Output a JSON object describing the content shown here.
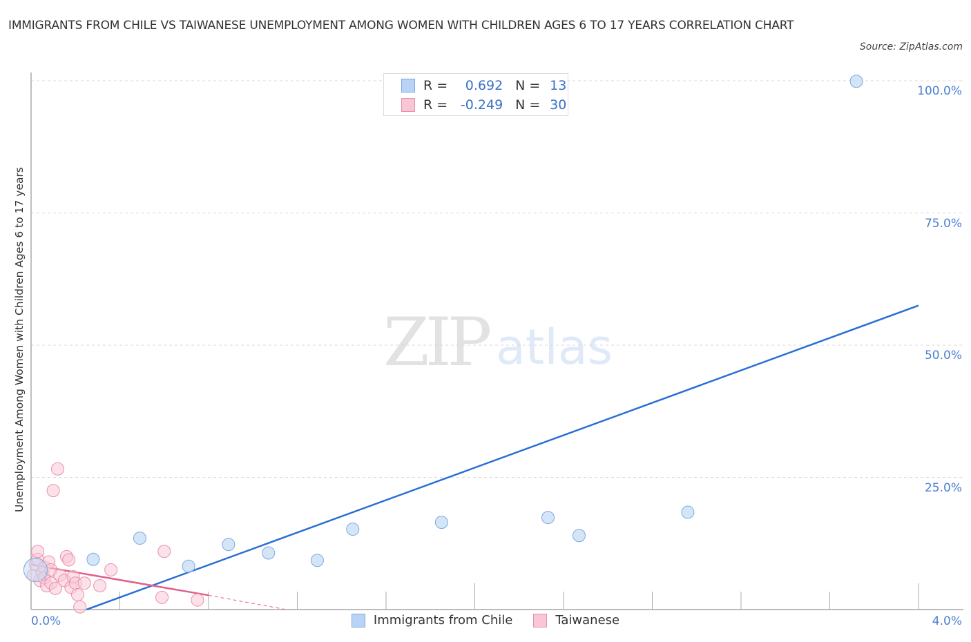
{
  "header": {
    "title": "IMMIGRANTS FROM CHILE VS TAIWANESE UNEMPLOYMENT AMONG WOMEN WITH CHILDREN AGES 6 TO 17 YEARS CORRELATION CHART",
    "source": "Source: ZipAtlas.com"
  },
  "watermark": {
    "zip": "ZIP",
    "atlas": "atlas"
  },
  "axes": {
    "ylabel": "Unemployment Among Women with Children Ages 6 to 17 years",
    "yticks": [
      "100.0%",
      "75.0%",
      "50.0%",
      "25.0%"
    ],
    "xticks": [
      "0.0%",
      "4.0%"
    ]
  },
  "legend": {
    "rows": [
      {
        "r_label": "R =",
        "r_value": "0.692",
        "n_label": "N =",
        "n_value": "13",
        "color": "#b8d3f5",
        "border": "#7aa7e0"
      },
      {
        "r_label": "R =",
        "r_value": "-0.249",
        "n_label": "N =",
        "n_value": "30",
        "color": "#f9c6d6",
        "border": "#e890aa"
      }
    ],
    "bottom": [
      "Immigrants from Chile",
      "Taiwanese"
    ]
  },
  "colors": {
    "blue_fill": "#c7dcf6",
    "blue_stroke": "#7aa7e0",
    "blue_line": "#2a6fd4",
    "pink_fill": "#f9c8d7",
    "pink_stroke": "#e890aa",
    "pink_line": "#e0608a",
    "tick_text": "#4a7fd0"
  },
  "chart_data": {
    "type": "scatter",
    "title": "IMMIGRANTS FROM CHILE VS TAIWANESE UNEMPLOYMENT AMONG WOMEN WITH CHILDREN AGES 6 TO 17 YEARS CORRELATION CHART",
    "xlabel": "",
    "ylabel": "Unemployment Among Women with Children Ages 6 to 17 years",
    "xlim": [
      0,
      4.0
    ],
    "ylim": [
      0,
      100
    ],
    "grid": true,
    "legend_position": "top-center / bottom",
    "series": [
      {
        "name": "Immigrants from Chile",
        "R": 0.692,
        "N": 13,
        "points": [
          [
            0.02,
            7.5
          ],
          [
            0.28,
            9.5
          ],
          [
            0.49,
            13.5
          ],
          [
            0.71,
            8.2
          ],
          [
            0.89,
            12.3
          ],
          [
            1.07,
            10.7
          ],
          [
            1.29,
            9.3
          ],
          [
            1.45,
            15.2
          ],
          [
            1.85,
            16.5
          ],
          [
            2.33,
            17.4
          ],
          [
            2.47,
            14.0
          ],
          [
            2.96,
            18.4
          ],
          [
            3.72,
            99.9
          ]
        ],
        "trendline": {
          "x": [
            0.25,
            4.0
          ],
          "y": [
            0,
            57.5
          ]
        }
      },
      {
        "name": "Taiwanese",
        "R": -0.249,
        "N": 30,
        "points": [
          [
            0.01,
            6.5
          ],
          [
            0.02,
            8.5
          ],
          [
            0.03,
            9.5
          ],
          [
            0.03,
            11.0
          ],
          [
            0.04,
            5.5
          ],
          [
            0.05,
            7.0
          ],
          [
            0.06,
            8.0
          ],
          [
            0.06,
            6.0
          ],
          [
            0.07,
            4.5
          ],
          [
            0.08,
            9.0
          ],
          [
            0.09,
            7.5
          ],
          [
            0.09,
            5.0
          ],
          [
            0.1,
            22.5
          ],
          [
            0.12,
            26.6
          ],
          [
            0.11,
            4.0
          ],
          [
            0.13,
            6.5
          ],
          [
            0.15,
            5.5
          ],
          [
            0.16,
            10.0
          ],
          [
            0.17,
            9.4
          ],
          [
            0.18,
            4.2
          ],
          [
            0.19,
            6.2
          ],
          [
            0.2,
            5.0
          ],
          [
            0.21,
            2.8
          ],
          [
            0.22,
            0.5
          ],
          [
            0.24,
            5.0
          ],
          [
            0.31,
            4.5
          ],
          [
            0.36,
            7.5
          ],
          [
            0.6,
            11.0
          ],
          [
            0.59,
            2.3
          ],
          [
            0.75,
            1.8
          ]
        ],
        "trendline": {
          "x": [
            0.0,
            0.8
          ],
          "y": [
            8.5,
            2.7
          ],
          "dashed_extension": {
            "x": [
              0.8,
              1.15
            ],
            "y": [
              2.7,
              0
            ]
          }
        }
      }
    ]
  }
}
